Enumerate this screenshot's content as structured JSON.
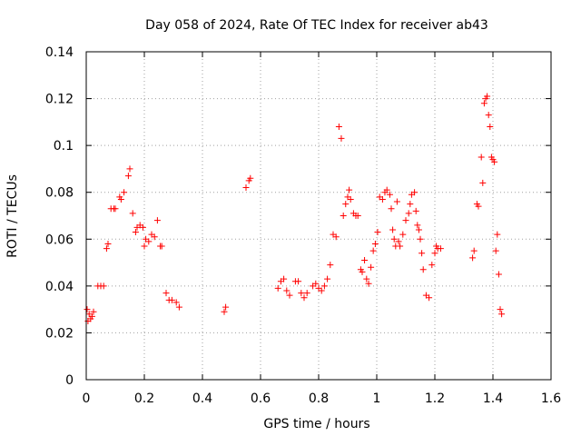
{
  "chart_data": {
    "type": "scatter",
    "title": "Day 058 of 2024, Rate Of TEC Index for receiver ab43",
    "xlabel": "GPS time / hours",
    "ylabel": "ROTI / TECUs",
    "xlim": [
      0,
      1.6
    ],
    "ylim": [
      0,
      0.14
    ],
    "x_ticks": [
      0,
      0.2,
      0.4,
      0.6,
      0.8,
      1,
      1.2,
      1.4,
      1.6
    ],
    "x_tick_labels": [
      "0",
      "0.2",
      "0.4",
      "0.6",
      "0.8",
      "1",
      "1.2",
      "1.4",
      "1.6"
    ],
    "y_ticks": [
      0,
      0.02,
      0.04,
      0.06,
      0.08,
      0.1,
      0.12,
      0.14
    ],
    "y_tick_labels": [
      "0",
      "0.02",
      "0.04",
      "0.06",
      "0.08",
      "0.1",
      "0.12",
      "0.14"
    ],
    "grid": true,
    "marker": "plus",
    "color": "#ff0000",
    "series": [
      {
        "name": "ROTI",
        "points": [
          [
            0.003,
            0.03
          ],
          [
            0.006,
            0.025
          ],
          [
            0.01,
            0.028
          ],
          [
            0.015,
            0.026
          ],
          [
            0.02,
            0.027
          ],
          [
            0.025,
            0.029
          ],
          [
            0.04,
            0.04
          ],
          [
            0.05,
            0.04
          ],
          [
            0.06,
            0.04
          ],
          [
            0.07,
            0.056
          ],
          [
            0.075,
            0.058
          ],
          [
            0.085,
            0.073
          ],
          [
            0.095,
            0.073
          ],
          [
            0.1,
            0.073
          ],
          [
            0.115,
            0.078
          ],
          [
            0.12,
            0.077
          ],
          [
            0.13,
            0.08
          ],
          [
            0.145,
            0.087
          ],
          [
            0.15,
            0.09
          ],
          [
            0.16,
            0.071
          ],
          [
            0.17,
            0.063
          ],
          [
            0.175,
            0.065
          ],
          [
            0.185,
            0.066
          ],
          [
            0.195,
            0.065
          ],
          [
            0.2,
            0.057
          ],
          [
            0.205,
            0.06
          ],
          [
            0.215,
            0.059
          ],
          [
            0.225,
            0.062
          ],
          [
            0.235,
            0.061
          ],
          [
            0.245,
            0.068
          ],
          [
            0.255,
            0.057
          ],
          [
            0.26,
            0.057
          ],
          [
            0.275,
            0.037
          ],
          [
            0.285,
            0.034
          ],
          [
            0.295,
            0.034
          ],
          [
            0.31,
            0.033
          ],
          [
            0.32,
            0.031
          ],
          [
            0.475,
            0.029
          ],
          [
            0.48,
            0.031
          ],
          [
            0.55,
            0.082
          ],
          [
            0.56,
            0.085
          ],
          [
            0.565,
            0.086
          ],
          [
            0.66,
            0.039
          ],
          [
            0.67,
            0.042
          ],
          [
            0.68,
            0.043
          ],
          [
            0.69,
            0.038
          ],
          [
            0.7,
            0.036
          ],
          [
            0.72,
            0.042
          ],
          [
            0.73,
            0.042
          ],
          [
            0.74,
            0.037
          ],
          [
            0.75,
            0.035
          ],
          [
            0.76,
            0.037
          ],
          [
            0.78,
            0.04
          ],
          [
            0.79,
            0.041
          ],
          [
            0.8,
            0.039
          ],
          [
            0.81,
            0.038
          ],
          [
            0.82,
            0.04
          ],
          [
            0.83,
            0.043
          ],
          [
            0.84,
            0.049
          ],
          [
            0.85,
            0.062
          ],
          [
            0.86,
            0.061
          ],
          [
            0.87,
            0.108
          ],
          [
            0.878,
            0.103
          ],
          [
            0.885,
            0.07
          ],
          [
            0.893,
            0.075
          ],
          [
            0.9,
            0.078
          ],
          [
            0.905,
            0.081
          ],
          [
            0.91,
            0.077
          ],
          [
            0.92,
            0.071
          ],
          [
            0.928,
            0.07
          ],
          [
            0.935,
            0.07
          ],
          [
            0.945,
            0.047
          ],
          [
            0.95,
            0.046
          ],
          [
            0.958,
            0.051
          ],
          [
            0.965,
            0.043
          ],
          [
            0.972,
            0.041
          ],
          [
            0.98,
            0.048
          ],
          [
            0.988,
            0.055
          ],
          [
            0.995,
            0.058
          ],
          [
            1.003,
            0.063
          ],
          [
            1.01,
            0.078
          ],
          [
            1.02,
            0.077
          ],
          [
            1.028,
            0.08
          ],
          [
            1.035,
            0.081
          ],
          [
            1.045,
            0.079
          ],
          [
            1.05,
            0.073
          ],
          [
            1.055,
            0.064
          ],
          [
            1.06,
            0.06
          ],
          [
            1.065,
            0.057
          ],
          [
            1.07,
            0.076
          ],
          [
            1.075,
            0.059
          ],
          [
            1.08,
            0.057
          ],
          [
            1.09,
            0.062
          ],
          [
            1.1,
            0.068
          ],
          [
            1.11,
            0.071
          ],
          [
            1.115,
            0.075
          ],
          [
            1.12,
            0.079
          ],
          [
            1.13,
            0.08
          ],
          [
            1.135,
            0.072
          ],
          [
            1.14,
            0.066
          ],
          [
            1.145,
            0.064
          ],
          [
            1.15,
            0.06
          ],
          [
            1.155,
            0.054
          ],
          [
            1.16,
            0.047
          ],
          [
            1.17,
            0.036
          ],
          [
            1.18,
            0.035
          ],
          [
            1.19,
            0.049
          ],
          [
            1.2,
            0.054
          ],
          [
            1.205,
            0.057
          ],
          [
            1.21,
            0.056
          ],
          [
            1.22,
            0.056
          ],
          [
            1.33,
            0.052
          ],
          [
            1.335,
            0.055
          ],
          [
            1.345,
            0.075
          ],
          [
            1.35,
            0.074
          ],
          [
            1.36,
            0.095
          ],
          [
            1.365,
            0.084
          ],
          [
            1.37,
            0.118
          ],
          [
            1.375,
            0.12
          ],
          [
            1.38,
            0.121
          ],
          [
            1.385,
            0.113
          ],
          [
            1.39,
            0.108
          ],
          [
            1.395,
            0.095
          ],
          [
            1.4,
            0.094
          ],
          [
            1.405,
            0.093
          ],
          [
            1.41,
            0.055
          ],
          [
            1.415,
            0.062
          ],
          [
            1.42,
            0.045
          ],
          [
            1.425,
            0.03
          ],
          [
            1.43,
            0.028
          ]
        ]
      }
    ]
  }
}
